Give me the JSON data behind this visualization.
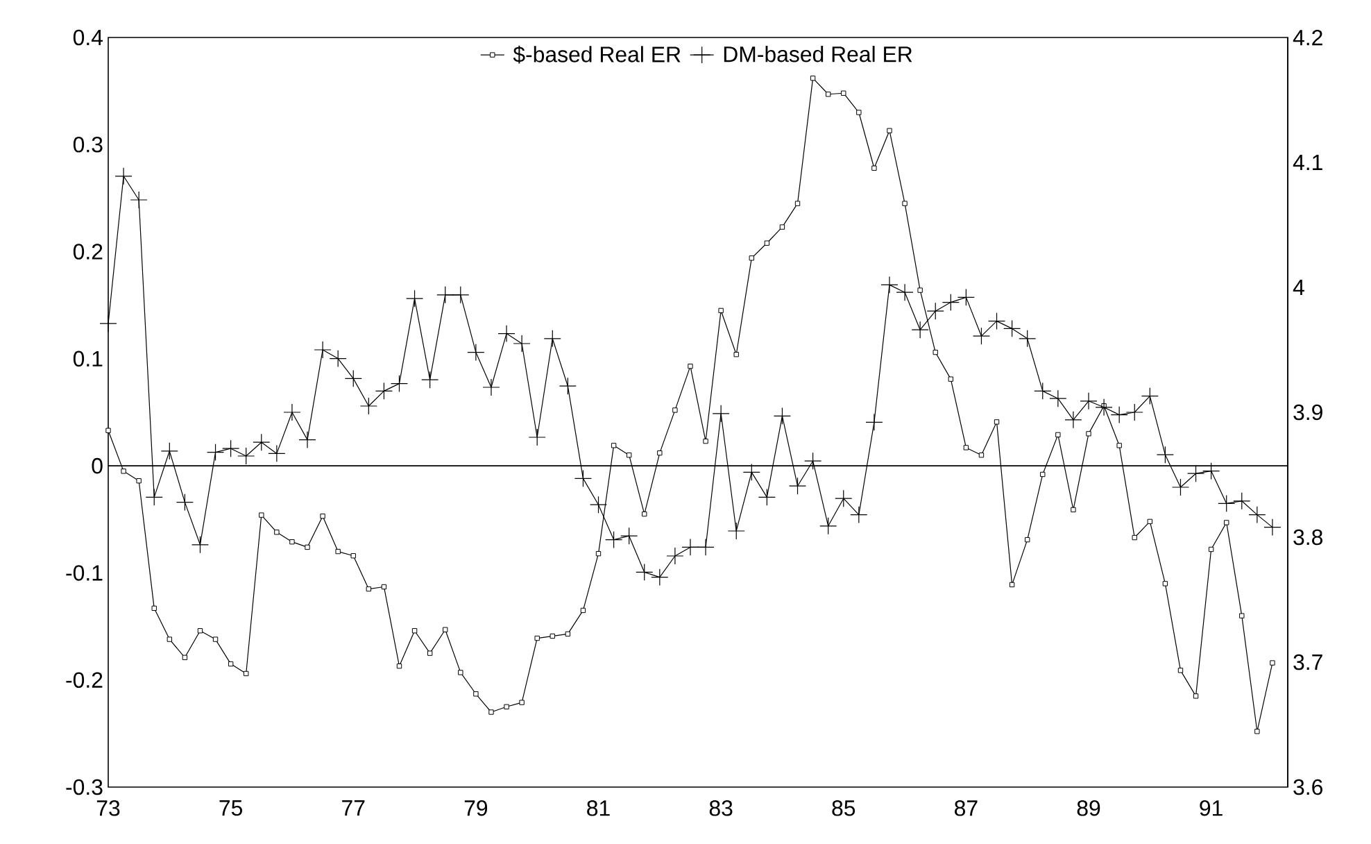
{
  "chart_data": {
    "type": "line",
    "x": [
      73.0,
      73.25,
      73.5,
      73.75,
      74.0,
      74.25,
      74.5,
      74.75,
      75.0,
      75.25,
      75.5,
      75.75,
      76.0,
      76.25,
      76.5,
      76.75,
      77.0,
      77.25,
      77.5,
      77.75,
      78.0,
      78.25,
      78.5,
      78.75,
      79.0,
      79.25,
      79.5,
      79.75,
      80.0,
      80.25,
      80.5,
      80.75,
      81.0,
      81.25,
      81.5,
      81.75,
      82.0,
      82.25,
      82.5,
      82.75,
      83.0,
      83.25,
      83.5,
      83.75,
      84.0,
      84.25,
      84.5,
      84.75,
      85.0,
      85.25,
      85.5,
      85.75,
      86.0,
      86.25,
      86.5,
      86.75,
      87.0,
      87.25,
      87.5,
      87.75,
      88.0,
      88.25,
      88.5,
      88.75,
      89.0,
      89.25,
      89.5,
      89.75,
      90.0,
      90.25,
      90.5,
      90.75,
      91.0,
      91.25,
      91.5,
      91.75,
      92.0
    ],
    "series": [
      {
        "name": "$-based Real ER",
        "color": "#000000",
        "marker": "square",
        "values": [
          0.033,
          -0.005,
          -0.014,
          -0.133,
          -0.162,
          -0.179,
          -0.154,
          -0.162,
          -0.185,
          -0.194,
          -0.046,
          -0.062,
          -0.071,
          -0.076,
          -0.047,
          -0.08,
          -0.084,
          -0.115,
          -0.113,
          -0.187,
          -0.154,
          -0.175,
          -0.153,
          -0.193,
          -0.213,
          -0.23,
          -0.225,
          -0.221,
          -0.161,
          -0.159,
          -0.157,
          -0.135,
          -0.082,
          0.019,
          0.01,
          -0.045,
          0.012,
          0.052,
          0.093,
          0.023,
          0.145,
          0.104,
          0.194,
          0.208,
          0.223,
          0.245,
          0.362,
          0.347,
          0.348,
          0.33,
          0.278,
          0.313,
          0.245,
          0.164,
          0.106,
          0.081,
          0.017,
          0.01,
          0.041,
          -0.111,
          -0.069,
          -0.008,
          0.029,
          -0.041,
          0.03,
          0.056,
          0.019,
          -0.067,
          -0.052,
          -0.11,
          -0.191,
          -0.215,
          -0.078,
          -0.053,
          -0.14,
          -0.248,
          -0.184
        ]
      },
      {
        "name": "DM-based Real ER",
        "color": "#000000",
        "marker": "cross",
        "axis": "y2",
        "values": [
          3.971,
          4.089,
          4.07,
          3.832,
          3.869,
          3.828,
          3.794,
          3.868,
          3.871,
          3.865,
          3.876,
          3.867,
          3.9,
          3.878,
          3.95,
          3.943,
          3.927,
          3.905,
          3.917,
          3.923,
          3.991,
          3.926,
          3.994,
          3.994,
          3.948,
          3.92,
          3.963,
          3.955,
          3.88,
          3.959,
          3.921,
          3.847,
          3.826,
          3.798,
          3.801,
          3.772,
          3.768,
          3.785,
          3.792,
          3.792,
          3.899,
          3.805,
          3.852,
          3.832,
          3.897,
          3.841,
          3.861,
          3.809,
          3.831,
          3.818,
          3.892,
          4.002,
          3.996,
          3.966,
          3.981,
          3.988,
          3.992,
          3.961,
          3.973,
          3.967,
          3.959,
          3.917,
          3.911,
          3.894,
          3.909,
          3.904,
          3.898,
          3.9,
          3.913,
          3.866,
          3.84,
          3.851,
          3.853,
          3.827,
          3.829,
          3.818,
          3.808
        ]
      }
    ],
    "xlim": [
      73,
      92.25
    ],
    "xticks": [
      73,
      75,
      77,
      79,
      81,
      83,
      85,
      87,
      89,
      91
    ],
    "ylim": [
      -0.3,
      0.4
    ],
    "yticks": [
      -0.3,
      -0.2,
      -0.1,
      0,
      0.1,
      0.2,
      0.3,
      0.4
    ],
    "y2lim": [
      3.6,
      4.2
    ],
    "y2ticks": [
      3.6,
      3.7,
      3.8,
      3.9,
      4,
      4.1,
      4.2
    ],
    "ref_lines": [
      {
        "axis": "y",
        "value": 0
      }
    ],
    "legend": "top",
    "grid": false,
    "line_style": "solid"
  }
}
